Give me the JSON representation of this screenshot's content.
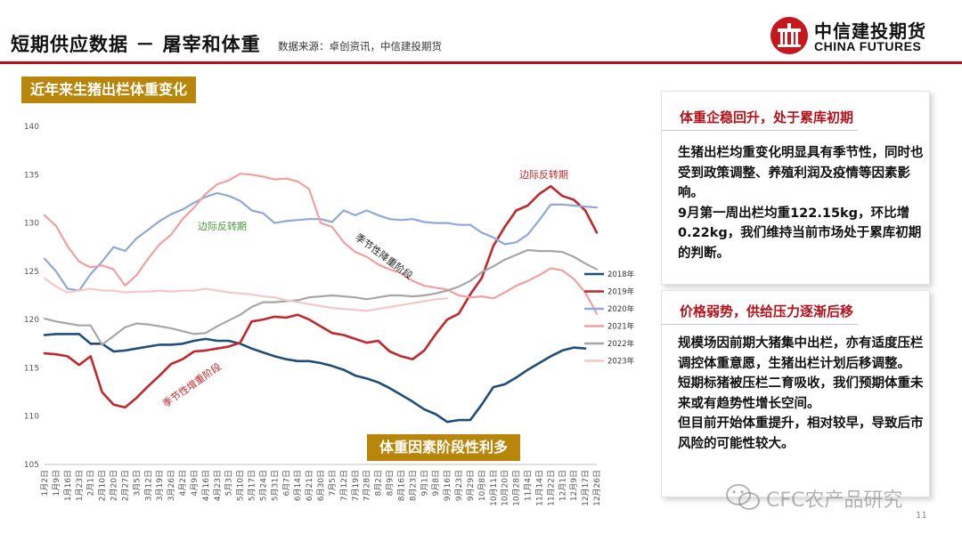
{
  "header": {
    "title": "短期供应数据 － 屠宰和体重",
    "source": "数据来源：卓创资讯，中信建投期货",
    "logo_cn": "中信建投期货",
    "logo_en": "CHINA FUTURES"
  },
  "chart_heading": "近年来生猪出栏体重变化",
  "banner": "体重因素阶段性利多",
  "annotations": {
    "green": "边际反转期",
    "red_top": "边际反转期",
    "decline": "季节性降重阶段",
    "increase": "季节性增重阶段"
  },
  "colors": {
    "brand_red": "#b3121b",
    "gold": "#b8860b",
    "anno_green": "#4a9a3a"
  },
  "chart_data": {
    "type": "line",
    "ylim": [
      105,
      140
    ],
    "yticks": [
      105,
      110,
      115,
      120,
      125,
      130,
      135,
      140
    ],
    "grid": false,
    "legend_position": "right",
    "x": [
      "1月2日",
      "1月9日",
      "1月16日",
      "1月23日",
      "2月1日",
      "2月10日",
      "2月20日",
      "2月27日",
      "3月5日",
      "3月12日",
      "3月19日",
      "3月26日",
      "4月2日",
      "4月9日",
      "4月16日",
      "4月23日",
      "5月3日",
      "5月10日",
      "5月17日",
      "5月24日",
      "5月31日",
      "6月7日",
      "6月14日",
      "6月21日",
      "6月30日",
      "7月5日",
      "7月12日",
      "7月19日",
      "7月28日",
      "8月2日",
      "8月9日",
      "8月16日",
      "8月23日",
      "9月1日",
      "9月8日",
      "9月16日",
      "9月23日",
      "9月29日",
      "10月8日",
      "10月11日",
      "10月20日",
      "10月28日",
      "11月4日",
      "11月14日",
      "11月22日",
      "12月1日",
      "12月9日",
      "12月17日",
      "12月26日"
    ],
    "series": [
      {
        "name": "2018年",
        "color": "#1f4e79",
        "values": [
          118.4,
          118.5,
          118.5,
          118.5,
          117.5,
          117.5,
          116.7,
          116.8,
          117.0,
          117.2,
          117.4,
          117.4,
          117.5,
          117.8,
          118.0,
          117.8,
          117.8,
          117.5,
          117.0,
          116.6,
          116.2,
          115.9,
          115.7,
          115.7,
          115.5,
          115.2,
          114.8,
          114.2,
          113.9,
          113.5,
          112.9,
          112.2,
          111.5,
          110.7,
          110.2,
          109.4,
          109.6,
          109.6,
          111.2,
          113.0,
          113.3,
          114.0,
          114.8,
          115.5,
          116.2,
          116.8,
          117.1,
          117.0,
          null
        ]
      },
      {
        "name": "2019年",
        "color": "#c0282c",
        "values": [
          116.5,
          116.4,
          116.2,
          115.3,
          116.2,
          112.5,
          111.2,
          110.9,
          111.9,
          113.1,
          114.2,
          115.4,
          115.9,
          116.7,
          116.8,
          117.0,
          117.2,
          117.6,
          119.8,
          120.0,
          120.3,
          120.2,
          120.5,
          120.0,
          119.3,
          118.6,
          118.4,
          118.0,
          117.6,
          117.8,
          116.7,
          116.2,
          115.9,
          116.8,
          118.5,
          120.0,
          120.6,
          122.6,
          124.3,
          127.6,
          129.6,
          131.3,
          131.8,
          133.0,
          133.8,
          132.8,
          132.4,
          131.3,
          129.0
        ]
      },
      {
        "name": "2020年",
        "color": "#8ea9d9",
        "values": [
          126.3,
          125.0,
          123.2,
          123.0,
          124.7,
          126.0,
          127.5,
          127.1,
          128.4,
          129.3,
          130.2,
          130.9,
          131.4,
          132.1,
          132.7,
          133.1,
          132.8,
          132.3,
          131.3,
          131.0,
          130.0,
          130.2,
          130.3,
          130.4,
          130.4,
          130.1,
          131.3,
          130.8,
          131.3,
          130.8,
          130.4,
          130.3,
          130.4,
          130.1,
          130.0,
          130.0,
          129.8,
          129.8,
          129.0,
          128.5,
          127.8,
          128.0,
          128.8,
          130.3,
          131.9,
          131.9,
          131.8,
          131.7,
          131.6
        ]
      },
      {
        "name": "2021年",
        "color": "#f0a0a0",
        "values": [
          130.8,
          129.7,
          127.6,
          126.0,
          125.4,
          125.6,
          125.2,
          123.5,
          124.6,
          126.3,
          127.8,
          128.8,
          130.4,
          131.6,
          133.0,
          134.0,
          134.4,
          135.1,
          135.0,
          134.8,
          134.5,
          134.6,
          134.3,
          133.5,
          130.0,
          129.6,
          128.0,
          127.0,
          126.5,
          125.7,
          125.2,
          124.8,
          124.0,
          123.5,
          123.3,
          123.1,
          122.5,
          122.3,
          122.4,
          122.2,
          122.8,
          123.5,
          124.0,
          124.6,
          125.3,
          125.1,
          124.2,
          122.8,
          120.6
        ]
      },
      {
        "name": "2022年",
        "color": "#a6a6a6",
        "values": [
          120.1,
          119.8,
          119.6,
          119.4,
          119.4,
          117.4,
          118.3,
          119.2,
          119.6,
          119.5,
          119.3,
          119.1,
          118.8,
          118.5,
          118.6,
          119.3,
          119.9,
          120.5,
          121.3,
          121.8,
          121.8,
          121.9,
          122.0,
          122.3,
          122.4,
          122.5,
          122.4,
          122.3,
          122.1,
          122.3,
          122.5,
          122.5,
          122.4,
          122.5,
          122.7,
          123.0,
          123.4,
          124.0,
          124.9,
          125.5,
          126.2,
          126.7,
          127.2,
          127.1,
          127.1,
          127.0,
          126.5,
          125.8,
          125.2
        ]
      },
      {
        "name": "2023年",
        "color": "#f6c7c7",
        "values": [
          124.3,
          123.4,
          122.8,
          123.0,
          123.2,
          123.0,
          123.0,
          122.8,
          122.9,
          122.9,
          123.0,
          122.9,
          123.0,
          123.0,
          123.2,
          123.0,
          122.8,
          122.7,
          122.6,
          122.4,
          122.3,
          122.0,
          121.8,
          121.6,
          121.4,
          121.2,
          121.1,
          121.0,
          120.9,
          121.1,
          121.3,
          121.5,
          121.7,
          121.9,
          122.1,
          122.2,
          null,
          null,
          null,
          null,
          null,
          null,
          null,
          null,
          null,
          null,
          null,
          null,
          null
        ]
      }
    ]
  },
  "card1": {
    "title": "体重企稳回升，处于累库初期",
    "body": "生猪出栏均重变化明显具有季节性，同时也受到政策调整、养殖利润及疫情等因素影响。\n9月第一周出栏均重122.15kg，环比增0.22kg，我们维持当前市场处于累库初期的判断。"
  },
  "card2": {
    "title": "价格弱势，供给压力逐渐后移",
    "body": "规模场因前期大猪集中出栏，亦有适度压栏调控体重意愿，生猪出栏计划后移调整。\n短期标猪被压栏二育吸收，我们预期体重未来或有趋势性增长空间。\n但目前开始体重提升，相对较早，导致后市风险的可能性较大。"
  },
  "watermark": "CFC农产品研究",
  "page_number": "11"
}
